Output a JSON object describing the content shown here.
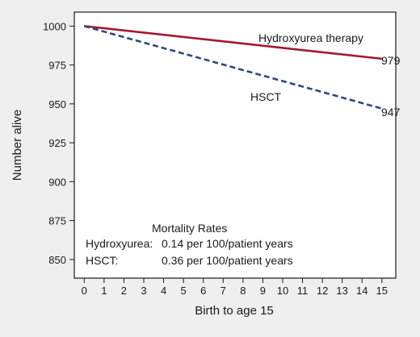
{
  "chart_data": {
    "type": "line",
    "xlabel": "Birth to age 15",
    "ylabel": "Number alive",
    "xlim": [
      -0.5,
      15.7
    ],
    "ylim": [
      838,
      1009
    ],
    "x_ticks": [
      0,
      1,
      2,
      3,
      4,
      5,
      6,
      7,
      8,
      9,
      10,
      11,
      12,
      13,
      14,
      15
    ],
    "y_ticks": [
      850,
      875,
      900,
      925,
      950,
      975,
      1000
    ],
    "grid": false,
    "series": [
      {
        "name": "Hydroxyurea therapy",
        "color": "#a3182e",
        "style": "solid",
        "x": [
          0,
          15
        ],
        "y": [
          1000,
          979
        ],
        "end_label": "979"
      },
      {
        "name": "HSCT",
        "color": "#2e4a7a",
        "style": "dashed",
        "x": [
          0,
          15
        ],
        "y": [
          1000,
          947
        ],
        "end_label": "947"
      }
    ],
    "annotation": {
      "title": "Mortality Rates",
      "rows": [
        {
          "label": "Hydroxyurea:",
          "value": "0.14 per 100/patient years"
        },
        {
          "label": "HSCT:",
          "value": "0.36 per 100/patient years"
        }
      ]
    }
  }
}
